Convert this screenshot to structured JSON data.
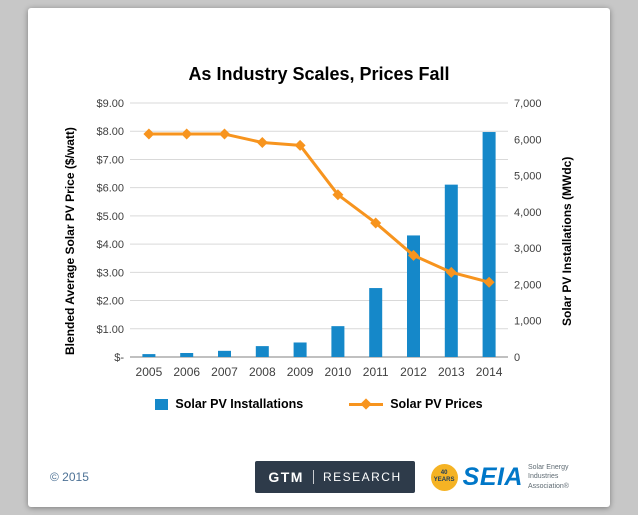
{
  "chart_data": {
    "type": "combo-bar-line-dual-axis",
    "title": "As Industry Scales, Prices Fall",
    "categories": [
      "2005",
      "2006",
      "2007",
      "2008",
      "2009",
      "2010",
      "2011",
      "2012",
      "2013",
      "2014"
    ],
    "series": [
      {
        "name": "Solar PV Installations",
        "type": "bar",
        "axis": "right",
        "color": "#1588C9",
        "values": [
          80,
          110,
          170,
          300,
          400,
          850,
          1900,
          3350,
          4750,
          6200
        ]
      },
      {
        "name": "Solar PV Prices",
        "type": "line",
        "axis": "left",
        "color": "#F7941E",
        "values": [
          7.9,
          7.9,
          7.9,
          7.6,
          7.5,
          5.75,
          4.75,
          3.6,
          3.0,
          2.65
        ]
      }
    ],
    "left_axis": {
      "label": "Blended Average Solar PV Price ($/watt)",
      "min": 0,
      "max": 9,
      "tick_labels": [
        "$-",
        "$1.00",
        "$2.00",
        "$3.00",
        "$4.00",
        "$5.00",
        "$6.00",
        "$7.00",
        "$8.00",
        "$9.00"
      ]
    },
    "right_axis": {
      "label": "Solar PV Installations (MWdc)",
      "min": 0,
      "max": 7000,
      "tick_labels": [
        "0",
        "1,000",
        "2,000",
        "3,000",
        "4,000",
        "5,000",
        "6,000",
        "7,000"
      ]
    },
    "grid": true,
    "gridline_color": "#D9D9D9",
    "axis_line_color": "#808080",
    "tick_text_color": "#404040",
    "legend_position": "bottom"
  },
  "footer": {
    "copyright": "© 2015",
    "gtm_logo": {
      "text_primary": "GTM",
      "text_secondary": "RESEARCH"
    },
    "seia_logo": {
      "badge": "40 YEARS",
      "name": "SEIA",
      "tagline": "Solar Energy Industries Association®"
    }
  }
}
